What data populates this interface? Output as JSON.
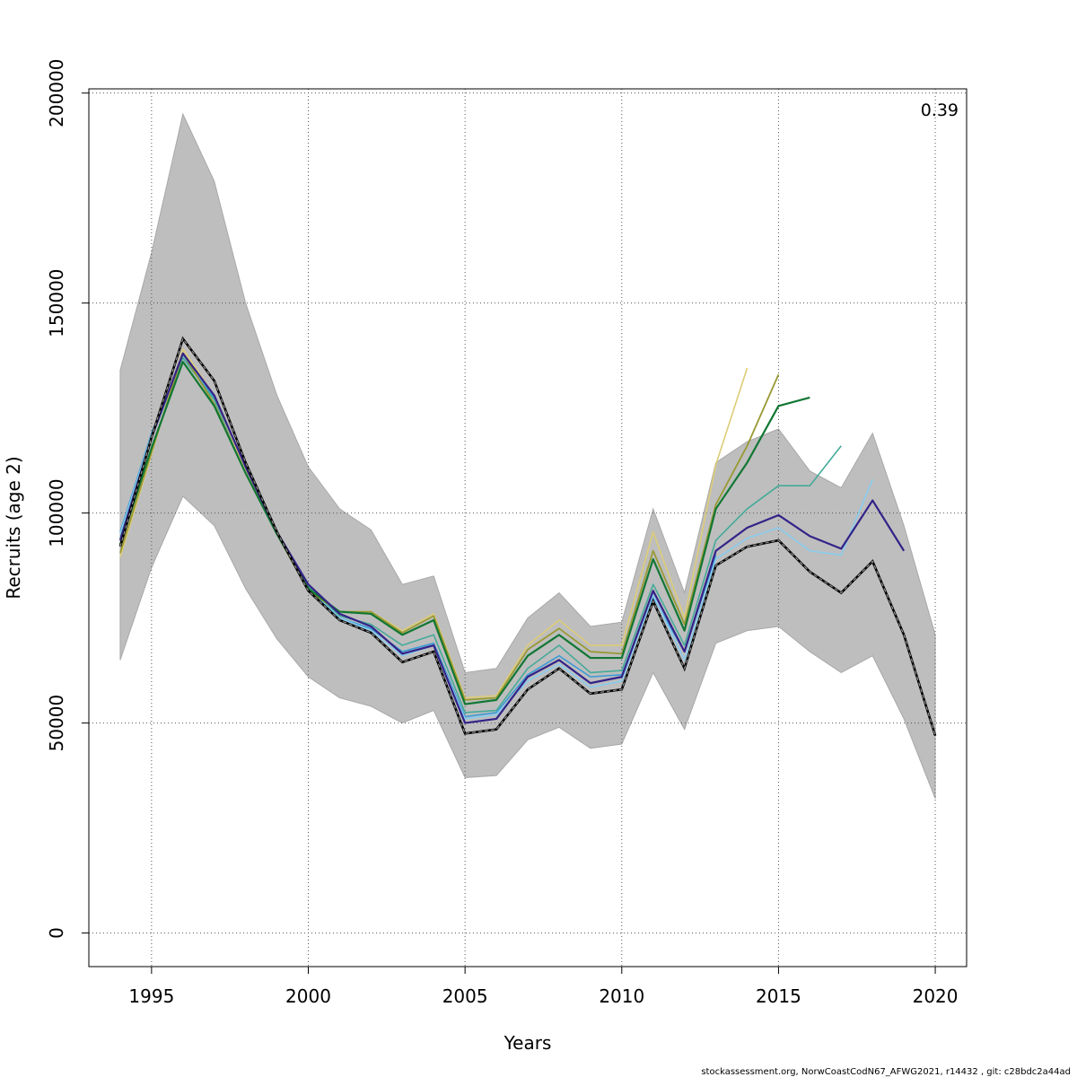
{
  "chart_data": {
    "type": "line",
    "title": "",
    "xlabel": "Years",
    "ylabel": "Recruits (age 2)",
    "xlim": [
      1993,
      2021
    ],
    "ylim": [
      -8000,
      201000
    ],
    "x_ticks": [
      1995,
      2000,
      2005,
      2010,
      2015,
      2020
    ],
    "y_ticks": [
      0,
      50000,
      100000,
      150000,
      200000
    ],
    "grid": true,
    "annotation": "0.39",
    "footer": "stockassessment.org, NorwCoastCodN67_AFWG2021, r14432 , git: c28bdc2a44ad",
    "band": {
      "color": "#bebebe",
      "x": [
        1994,
        1995,
        1996,
        1997,
        1998,
        1999,
        2000,
        2001,
        2002,
        2003,
        2004,
        2005,
        2006,
        2007,
        2008,
        2009,
        2010,
        2011,
        2012,
        2013,
        2014,
        2015,
        2016,
        2017,
        2018,
        2019,
        2020
      ],
      "upper": [
        134000,
        162000,
        195000,
        179000,
        150000,
        128000,
        111000,
        101000,
        96000,
        83000,
        85000,
        62000,
        63000,
        75000,
        81000,
        73000,
        74000,
        101000,
        81000,
        112000,
        117000,
        120000,
        110000,
        106000,
        119000,
        97000,
        71000
      ],
      "lower": [
        65000,
        87000,
        104000,
        97000,
        82000,
        70000,
        61000,
        56000,
        54000,
        50000,
        53000,
        37000,
        37500,
        46000,
        49000,
        44000,
        45000,
        62000,
        48500,
        69000,
        72000,
        73000,
        67000,
        62000,
        66000,
        51000,
        32000
      ]
    },
    "series": [
      {
        "color": "#3a9bd6",
        "width": 1.6,
        "x": [
          1994,
          1995,
          1996,
          1997,
          1998,
          1999,
          2000,
          2001,
          2002,
          2003,
          2004,
          2005,
          2006,
          2007,
          2008,
          2009,
          2010,
          2011,
          2012,
          2013
        ],
        "values": [
          95500,
          119000,
          137000,
          127500,
          111000,
          95500,
          82000,
          75000,
          72500,
          67000,
          69000,
          51500,
          52500,
          61500,
          66000,
          61000,
          61500,
          80000,
          67000,
          90000
        ]
      },
      {
        "color": "#88ccee",
        "width": 1.6,
        "x": [
          1994,
          1995,
          1996,
          1997,
          1998,
          1999,
          2000,
          2001,
          2002,
          2003,
          2004,
          2005,
          2006,
          2007,
          2008,
          2009,
          2010,
          2011,
          2012,
          2013,
          2014,
          2015,
          2016,
          2017,
          2018
        ],
        "values": [
          95000,
          118500,
          137500,
          128000,
          111000,
          95500,
          82500,
          75000,
          72000,
          66000,
          68500,
          51000,
          52000,
          60000,
          64000,
          58500,
          60000,
          80500,
          65000,
          89000,
          94000,
          96500,
          91000,
          90000,
          108000
        ]
      },
      {
        "color": "#44aa99",
        "width": 1.6,
        "x": [
          1994,
          1995,
          1996,
          1997,
          1998,
          1999,
          2000,
          2001,
          2002,
          2003,
          2004,
          2005,
          2006,
          2007,
          2008,
          2009,
          2010,
          2011,
          2012,
          2013,
          2014,
          2015,
          2016,
          2017
        ],
        "values": [
          94000,
          118000,
          137000,
          127000,
          110500,
          95500,
          82500,
          75500,
          73500,
          68500,
          71000,
          52500,
          53000,
          63000,
          68500,
          62000,
          62500,
          83000,
          68500,
          93500,
          101000,
          106500,
          106500,
          116000
        ]
      },
      {
        "color": "#ddcc77",
        "width": 1.6,
        "x": [
          1994,
          1995,
          1996,
          1997,
          1998,
          1999,
          2000,
          2001,
          2002,
          2003,
          2004,
          2005,
          2006,
          2007,
          2008,
          2009,
          2010,
          2011,
          2012,
          2013,
          2014
        ],
        "values": [
          89500,
          114000,
          139000,
          128000,
          110000,
          95000,
          81500,
          76500,
          76500,
          72000,
          76000,
          56000,
          56500,
          68500,
          74500,
          68500,
          68500,
          95500,
          75000,
          111500,
          134500
        ]
      },
      {
        "color": "#999933",
        "width": 1.8,
        "x": [
          1994,
          1995,
          1996,
          1997,
          1998,
          1999,
          2000,
          2001,
          2002,
          2003,
          2004,
          2005,
          2006,
          2007,
          2008,
          2009,
          2010,
          2011,
          2012,
          2013,
          2014,
          2015
        ],
        "values": [
          90500,
          114500,
          138000,
          126000,
          109500,
          95000,
          81500,
          76500,
          76500,
          71500,
          75500,
          55500,
          56000,
          67500,
          72500,
          67000,
          66500,
          91000,
          73500,
          102000,
          116000,
          133000
        ]
      },
      {
        "color": "#117733",
        "width": 2.2,
        "x": [
          1994,
          1995,
          1996,
          1997,
          1998,
          1999,
          2000,
          2001,
          2002,
          2003,
          2004,
          2005,
          2006,
          2007,
          2008,
          2009,
          2010,
          2011,
          2012,
          2013,
          2014,
          2015,
          2016
        ],
        "values": [
          92500,
          115500,
          136000,
          125500,
          109500,
          95000,
          82000,
          76500,
          76000,
          71000,
          74500,
          54500,
          55500,
          66000,
          71000,
          65500,
          65500,
          89000,
          72000,
          101000,
          112000,
          125500,
          127500
        ]
      },
      {
        "color": "#332288",
        "width": 2.2,
        "x": [
          1994,
          1995,
          1996,
          1997,
          1998,
          1999,
          2000,
          2001,
          2002,
          2003,
          2004,
          2005,
          2006,
          2007,
          2008,
          2009,
          2010,
          2011,
          2012,
          2013,
          2014,
          2015,
          2016,
          2017,
          2018,
          2019
        ],
        "values": [
          93500,
          118000,
          138000,
          128000,
          111000,
          95500,
          83000,
          76000,
          73000,
          66500,
          68500,
          50000,
          51000,
          61000,
          65000,
          59500,
          61000,
          81500,
          67000,
          91000,
          96500,
          99500,
          94500,
          91500,
          103000,
          91000
        ]
      },
      {
        "color": "#000000",
        "width": 2.2,
        "dashed": true,
        "x": [
          1994,
          1995,
          1996,
          1997,
          1998,
          1999,
          2000,
          2001,
          2002,
          2003,
          2004,
          2005,
          2006,
          2007,
          2008,
          2009,
          2010,
          2011,
          2012,
          2013,
          2014,
          2015,
          2016,
          2017,
          2018,
          2019,
          2020
        ],
        "values": [
          92000,
          118000,
          141500,
          131500,
          112000,
          95500,
          81500,
          74500,
          71500,
          64500,
          67000,
          47500,
          48500,
          58000,
          63000,
          57000,
          58000,
          79000,
          63000,
          87500,
          92000,
          93500,
          86000,
          81000,
          88500,
          71000,
          47000
        ]
      }
    ]
  }
}
